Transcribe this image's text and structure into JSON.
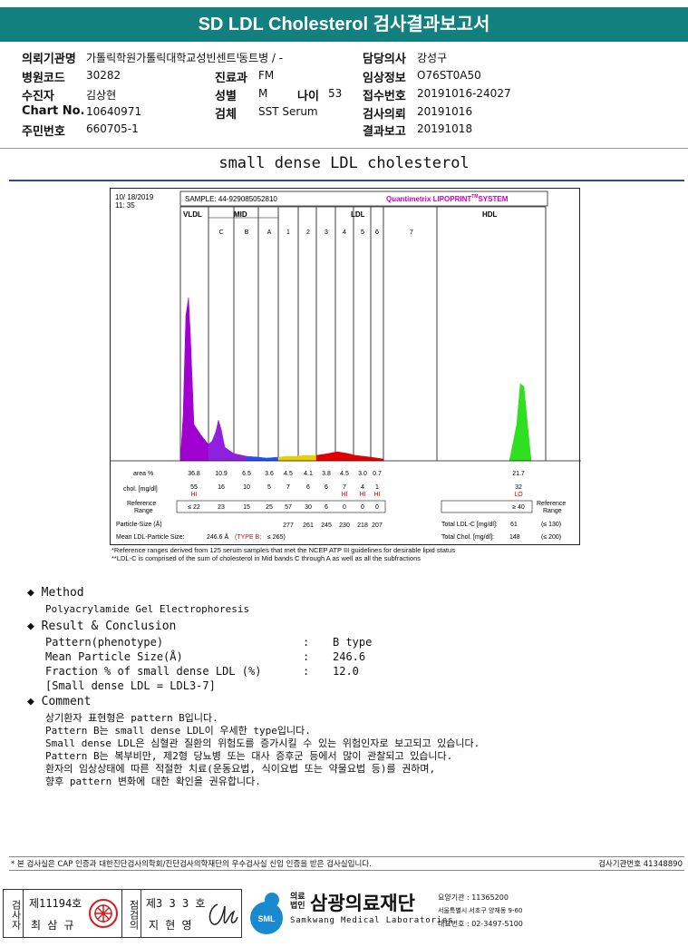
{
  "header": {
    "title": "SD LDL Cholesterol 검사결과보고서"
  },
  "info": {
    "institution_label": "의뢰기관명",
    "institution": "가톨릭학원가톨릭대학교성빈센트병원",
    "ward_sep": "동트병 / -",
    "doctor_label": "담당의사",
    "doctor": "강성구",
    "hospital_code_label": "병원코드",
    "hospital_code": "30282",
    "dept_label": "진료과",
    "dept": "FM",
    "report_info_label": "임상정보",
    "report_info": "O76ST0A50",
    "patient_label": "수진자",
    "patient": "김상현",
    "sex_label": "성별",
    "sex": "M",
    "age_label": "나이",
    "age": "53",
    "receipt_label": "접수번호",
    "receipt": "20191016-24027",
    "chart_label": "Chart No.",
    "chart": "10640971",
    "specimen_label": "검체",
    "specimen": "SST Serum",
    "request_label": "검사의뢰",
    "request": "20191016",
    "rrn_label": "주민번호",
    "rrn": "660705-1",
    "result_label": "결과보고",
    "result": "20191018"
  },
  "subtitle": "small dense LDL cholesterol",
  "chart_header": {
    "date": "10/ 18/2019",
    "time": "11: 35",
    "sample": "SAMPLE:   44-929085052810",
    "brand": "Quantimetrix LIPOPRINT",
    "brand_tm": "TM",
    "brand_sys": "SYSTEM",
    "vldl": "VLDL",
    "mid": "MID",
    "ldl": "LDL",
    "hdl": "HDL"
  },
  "chart_data": {
    "type": "area",
    "bands": [
      "VLDL",
      "C",
      "B",
      "A",
      "1",
      "2",
      "3",
      "4",
      "5",
      "6",
      "7",
      "HDL"
    ],
    "area_pct": [
      "36.8",
      "10.9",
      "6.5",
      "3.6",
      "4.5",
      "4.1",
      "3.8",
      "4.5",
      "3.0",
      "0.7",
      "",
      "21.7"
    ],
    "chol_mgdl": [
      "55",
      "16",
      "10",
      "5",
      "7",
      "6",
      "6",
      "7",
      "4",
      "1",
      "",
      "32"
    ],
    "flags": [
      "HI",
      "",
      "",
      "",
      "",
      "",
      "",
      "HI",
      "HI",
      "HI",
      "",
      "LO"
    ],
    "reference": [
      "≤  22",
      "23",
      "15",
      "25",
      "57",
      "30",
      "6",
      "0",
      "0",
      "0",
      "",
      "≥ 40"
    ],
    "particle_size": [
      "",
      "",
      "",
      "",
      "277",
      "261",
      "245",
      "230",
      "218",
      "207",
      "",
      ""
    ],
    "row_labels": {
      "area": "area %",
      "chol": "chol. [mg/dl]",
      "ref1": "Reference",
      "ref2": "Range",
      "psize": "Particle-Size (Å)",
      "mean": "Mean LDL-Particle Size:"
    },
    "mean_size": "246.6 Å",
    "mean_type": "(TYPE B;",
    "mean_ref": "≤ 265)",
    "total_ldl_label": "Total LDL-C [mg/dl]:",
    "total_ldl": "61",
    "total_ldl_ref": "(≤ 130)",
    "total_chol_label": "Total Chol. [mg/dl]:",
    "total_chol": "148",
    "total_chol_ref": "(≤ 200)",
    "ref_right1": "Reference",
    "ref_right2": "Range",
    "colors": {
      "vldl": "#a000d0",
      "mid": "#2050ff",
      "ldl_yellow": "#e8d000",
      "ldl_red": "#e00000",
      "hdl": "#30e020"
    }
  },
  "notes": {
    "n1": "*Reference ranges derived from 125 serum samples that met the NCEP ATP III guidelines for desirable lipid status",
    "n2": "**LDL-C is comprised of the sum of cholesterol in Mid bands C through A as well as all the subfractions"
  },
  "method": {
    "heading": "Method",
    "text": "Polyacrylamide Gel Electrophoresis"
  },
  "result": {
    "heading": "Result & Conclusion",
    "pattern_label": "Pattern(phenotype)",
    "pattern": "B type",
    "mean_label": "Mean Particle Size(Å)",
    "mean": "246.6",
    "frac_label": "Fraction % of small dense LDL (%)",
    "frac": "12.0",
    "sdldl": "[Small dense LDL = LDL3-7]",
    "colon": ":"
  },
  "comment": {
    "heading": "Comment",
    "lines": [
      "상기환자 표현형은 pattern B입니다.",
      "Pattern B는 small dense LDL이 우세한 type입니다.",
      "Small dense LDL은 심혈관 질환의 위험도를 증가시킬 수 있는 위험인자로 보고되고 있습니다.",
      "Pattern B는 복부비만, 제2형 당뇨병 또는 대사 증후군 등에서 많이 관찰되고 있습니다.",
      "환자의 임상상태에 따른 적절한 치료(운동요법, 식이요법 또는 약물요법 등)를 권하며,",
      "향후 pattern 변화에 대한 확인을 권유합니다."
    ]
  },
  "cert": {
    "text": "* 본 검사실은 CAP 인증과 대한진단검사의학회/진단검사의학재단의 우수검사실 신임 인증을 받은 검사실입니다.",
    "code": "검사기관번호 41348890"
  },
  "signature": {
    "tester_label": "검사자",
    "tester_no": "제11194호",
    "tester_name": "최 삼 규",
    "reviewer_label": "점검의",
    "reviewer_no": "제3 3 3 호",
    "reviewer_name": "지 현 영"
  },
  "org": {
    "corp1": "의료",
    "corp2": "법인",
    "name": "삼광의료재단",
    "sml": "SML",
    "eng": "Samkwang Medical Laboratories",
    "code_line": "요양기관 : 11365200",
    "addr": "서울특별시 서초구 양재동 9-60",
    "tel": "대표번호 : 02-3497-5100"
  }
}
